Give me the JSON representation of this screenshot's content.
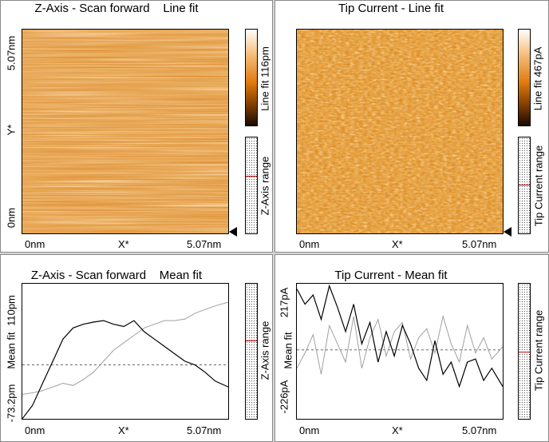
{
  "panels": {
    "z_line": {
      "title": "Z-Axis - Scan forward    Line fit",
      "y_top": "5.07nm",
      "y_mid": "Y*",
      "y_bottom": "0nm",
      "x_left": "0nm",
      "x_mid": "X*",
      "x_right": "5.07nm",
      "colorbar_label": "Line fit 116pm",
      "range_label": "Z-Axis range"
    },
    "tip_line": {
      "title": "Tip Current - Line fit",
      "x_left": "0nm",
      "x_mid": "X*",
      "x_right": "5.07nm",
      "colorbar_label": "Line fit 467pA",
      "range_label": "Tip Current range"
    },
    "z_mean": {
      "title": "Z-Axis - Scan forward    Mean fit",
      "y_top": "110pm",
      "y_mid": "Mean fit",
      "y_bottom": "-73.2pm",
      "x_left": "0nm",
      "x_mid": "X*",
      "x_right": "5.07nm",
      "range_label": "Z-Axis range"
    },
    "tip_mean": {
      "title": "Tip Current - Mean fit",
      "y_top": "217pA",
      "y_mid": "Mean fit",
      "y_bottom": "-226pA",
      "x_left": "0nm",
      "x_mid": "X*",
      "x_right": "5.07nm",
      "range_label": "Tip Current range"
    }
  },
  "colors": {
    "colormap_dark": "#1a0a00",
    "colormap_mid": "#e07a10",
    "colormap_light": "#ffffff",
    "range_marker": "#d00000",
    "trace_forward": "#000000",
    "trace_backward": "#a0a0a0"
  },
  "chart_data": [
    {
      "type": "line",
      "title": "Z-Axis - Scan forward    Mean fit",
      "xlabel": "X*",
      "ylabel": "Mean fit",
      "xlim": [
        0,
        5.07
      ],
      "ylim": [
        -73.2,
        110
      ],
      "series": [
        {
          "x": [
            0,
            0.25,
            0.5,
            0.75,
            1.0,
            1.25,
            1.5,
            1.75,
            2.0,
            2.25,
            2.5,
            2.75,
            3.0,
            3.25,
            3.5,
            3.75,
            4.0,
            4.25,
            4.5,
            4.75,
            5.07
          ],
          "values": [
            -73,
            -55,
            -25,
            5,
            35,
            50,
            55,
            58,
            60,
            55,
            52,
            60,
            45,
            35,
            25,
            15,
            5,
            0,
            -10,
            -22,
            -30
          ]
        },
        {
          "x": [
            0,
            0.25,
            0.5,
            0.75,
            1.0,
            1.25,
            1.5,
            1.75,
            2.0,
            2.25,
            2.5,
            2.75,
            3.0,
            3.25,
            3.5,
            3.75,
            4.0,
            4.25,
            4.5,
            4.75,
            5.07
          ],
          "values": [
            -40,
            -38,
            -35,
            -30,
            -25,
            -28,
            -20,
            -10,
            5,
            20,
            30,
            40,
            50,
            55,
            60,
            60,
            62,
            70,
            75,
            80,
            85
          ]
        }
      ]
    },
    {
      "type": "line",
      "title": "Tip Current - Mean fit",
      "xlabel": "X*",
      "ylabel": "Mean fit",
      "xlim": [
        0,
        5.07
      ],
      "ylim": [
        -226,
        217
      ],
      "series": [
        {
          "x": [
            0,
            0.2,
            0.4,
            0.6,
            0.8,
            1.0,
            1.2,
            1.4,
            1.6,
            1.8,
            2.0,
            2.2,
            2.4,
            2.6,
            2.8,
            3.0,
            3.2,
            3.4,
            3.6,
            3.8,
            4.0,
            4.2,
            4.4,
            4.6,
            4.8,
            5.07
          ],
          "values": [
            200,
            150,
            180,
            100,
            210,
            140,
            60,
            150,
            20,
            90,
            -40,
            60,
            -20,
            80,
            20,
            -60,
            -100,
            30,
            -80,
            -40,
            -120,
            -40,
            -30,
            -100,
            -60,
            -120
          ]
        },
        {
          "x": [
            0,
            0.2,
            0.4,
            0.6,
            0.8,
            1.0,
            1.2,
            1.4,
            1.6,
            1.8,
            2.0,
            2.2,
            2.4,
            2.6,
            2.8,
            3.0,
            3.2,
            3.4,
            3.6,
            3.8,
            4.0,
            4.2,
            4.4,
            4.6,
            4.8,
            5.07
          ],
          "values": [
            -60,
            -10,
            50,
            -80,
            80,
            20,
            -40,
            110,
            -60,
            40,
            100,
            -20,
            60,
            90,
            -30,
            40,
            70,
            -10,
            110,
            20,
            -40,
            80,
            -10,
            40,
            -30,
            10
          ]
        }
      ]
    }
  ]
}
